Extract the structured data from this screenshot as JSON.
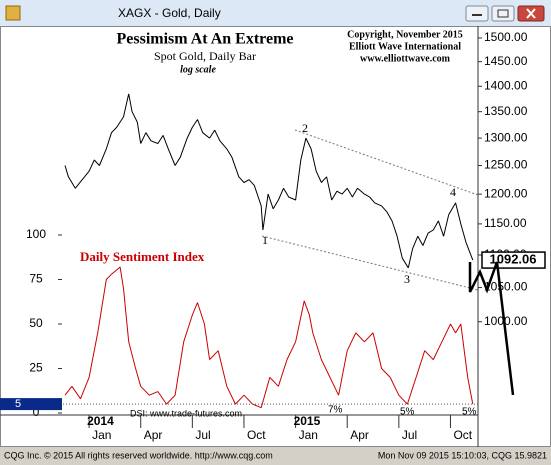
{
  "window": {
    "title": "XAGX - Gold, Daily",
    "footer_left": "CQG Inc. © 2015 All rights reserved worldwide. http://www.cqg.com",
    "footer_right": "Mon Nov 09 2015 15:10:03, CQG 15.9821"
  },
  "chart_data": {
    "type": "line",
    "title": "Pessimism At An Extreme",
    "subtitle": "Spot Gold, Daily Bar",
    "scale_note": "log scale",
    "copyright": [
      "Copyright, November 2015",
      "Elliott Wave International",
      "www.elliottwave.com"
    ],
    "log_scale": true,
    "xlim": [
      -1.4,
      22.6
    ],
    "xticks": [
      {
        "value": 0,
        "label": "Jan"
      },
      {
        "value": 3,
        "label": "Apr"
      },
      {
        "value": 6,
        "label": "Jul"
      },
      {
        "value": 9,
        "label": "Oct"
      },
      {
        "value": 12,
        "label": "Jan"
      },
      {
        "value": 15,
        "label": "Apr"
      },
      {
        "value": 18,
        "label": "Jul"
      },
      {
        "value": 21,
        "label": "Oct"
      }
    ],
    "years": [
      {
        "value": 0,
        "label": "2014"
      },
      {
        "value": 12,
        "label": "2015"
      }
    ],
    "ylim": [
      884,
      1528
    ],
    "yticks": [
      {
        "value": 1000,
        "label": "1000.00"
      },
      {
        "value": 1050,
        "label": "1050.00"
      },
      {
        "value": 1100,
        "label": "1100.00"
      },
      {
        "value": 1150,
        "label": "1150.00"
      },
      {
        "value": 1200,
        "label": "1200.00"
      },
      {
        "value": 1250,
        "label": "1250.00"
      },
      {
        "value": 1300,
        "label": "1300.00"
      },
      {
        "value": 1350,
        "label": "1350.00"
      },
      {
        "value": 1400,
        "label": "1400.00"
      },
      {
        "value": 1450,
        "label": "1450.00"
      },
      {
        "value": 1500,
        "label": "1500.00"
      }
    ],
    "y2lim": [
      0,
      100
    ],
    "y2ticks": [
      0,
      25,
      50,
      75,
      100
    ],
    "last_price": 1092.06,
    "last_sentiment": 5,
    "sentiment_title": "Daily Sentiment Index",
    "sentiment_source": "DSI: www.trade-futures.com",
    "wave_labels": [
      "1",
      "2",
      "3",
      "4"
    ],
    "sentiment_notes": [
      "7%",
      "5%",
      "5%"
    ],
    "series": [
      {
        "name": "Spot Gold",
        "color": "#000000",
        "axis": "y",
        "x": [
          -1.4,
          -1.2,
          -0.8,
          -0.4,
          0,
          0.3,
          0.6,
          1,
          1.3,
          1.6,
          2,
          2.3,
          2.5,
          2.8,
          3,
          3.3,
          3.6,
          4,
          4.3,
          4.6,
          5,
          5.3,
          5.7,
          6,
          6.3,
          6.6,
          7,
          7.3,
          7.6,
          8,
          8.3,
          8.7,
          9,
          9.3,
          9.6,
          10,
          10.1,
          10.4,
          10.7,
          11,
          11.3,
          11.6,
          12,
          12.3,
          12.6,
          12.9,
          13.2,
          13.5,
          13.8,
          14.1,
          14.4,
          14.7,
          15,
          15.3,
          15.6,
          16,
          16.3,
          16.6,
          17,
          17.3,
          17.6,
          17.9,
          18.2,
          18.55,
          18.8,
          19.1,
          19.4,
          19.7,
          20,
          20.3,
          20.6,
          20.9,
          21.3,
          21.6,
          21.9,
          22.3
        ],
        "values": [
          1250,
          1230,
          1210,
          1225,
          1240,
          1260,
          1250,
          1280,
          1310,
          1320,
          1340,
          1385,
          1350,
          1330,
          1290,
          1310,
          1295,
          1290,
          1305,
          1280,
          1250,
          1265,
          1300,
          1320,
          1335,
          1310,
          1300,
          1315,
          1295,
          1280,
          1265,
          1230,
          1220,
          1225,
          1215,
          1180,
          1140,
          1200,
          1175,
          1190,
          1210,
          1195,
          1190,
          1260,
          1300,
          1280,
          1240,
          1220,
          1230,
          1190,
          1205,
          1200,
          1210,
          1195,
          1210,
          1200,
          1195,
          1185,
          1180,
          1170,
          1155,
          1130,
          1095,
          1080,
          1110,
          1130,
          1115,
          1135,
          1140,
          1155,
          1130,
          1165,
          1185,
          1150,
          1120,
          1092
        ]
      },
      {
        "name": "Daily Sentiment Index",
        "color": "#cc0000",
        "axis": "y2",
        "x": [
          -1.4,
          -1,
          -0.5,
          0,
          0.5,
          1,
          1.3,
          1.8,
          2,
          2.3,
          2.7,
          3,
          3.5,
          4,
          4.5,
          5,
          5.5,
          6,
          6.3,
          6.7,
          7,
          7.5,
          8,
          8.5,
          9,
          9.5,
          10,
          10.5,
          11,
          11.5,
          12,
          12.5,
          12.8,
          13,
          13.5,
          14,
          14.5,
          15,
          15.5,
          16,
          16.5,
          17,
          17.5,
          18,
          18.5,
          19,
          19.5,
          20,
          20.5,
          21,
          21.3,
          21.6,
          22,
          22.3
        ],
        "values": [
          10,
          15,
          8,
          20,
          45,
          75,
          78,
          82,
          70,
          40,
          25,
          15,
          10,
          12,
          5,
          10,
          40,
          55,
          62,
          50,
          30,
          35,
          15,
          5,
          10,
          5,
          3,
          20,
          15,
          30,
          40,
          63,
          55,
          45,
          30,
          20,
          10,
          35,
          45,
          40,
          45,
          25,
          20,
          10,
          5,
          20,
          35,
          30,
          40,
          50,
          45,
          50,
          20,
          5
        ]
      }
    ]
  }
}
